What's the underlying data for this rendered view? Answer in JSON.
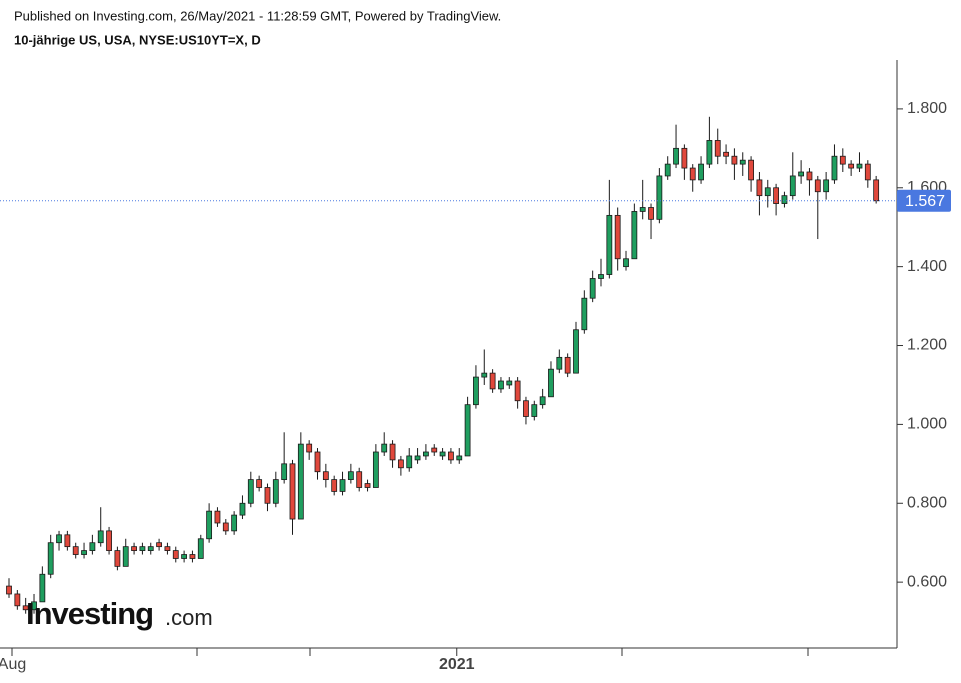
{
  "chart_data": {
    "type": "candlestick",
    "published": "Published on Investing.com, 26/May/2021 - 11:28:59 GMT, Powered by TradingView.",
    "title": "10-jährige US, USA, NYSE:US10YT=X, D",
    "logo": "Investing",
    "logo_suffix": ".com",
    "up_color": "#1f9e5f",
    "down_color": "#e0483c",
    "ylim": [
      0.433,
      1.924
    ],
    "yticks": [
      {
        "value": 0.6,
        "label": "0.600"
      },
      {
        "value": 0.8,
        "label": "0.800"
      },
      {
        "value": 1.0,
        "label": "1.000"
      },
      {
        "value": 1.2,
        "label": "1.200"
      },
      {
        "value": 1.4,
        "label": "1.400"
      },
      {
        "value": 1.6,
        "label": "1.600"
      },
      {
        "value": 1.8,
        "label": "1.800"
      }
    ],
    "xlim": [
      -1.08,
      106.5
    ],
    "xticks": [
      {
        "value": 0.36,
        "label": "Aug"
      },
      {
        "value": 53.7,
        "label": "2021"
      }
    ],
    "last_price": 1.567,
    "last_price_color": "#4a78e0",
    "candles": [
      [
        0.59,
        0.61,
        0.56,
        0.57
      ],
      [
        0.57,
        0.58,
        0.53,
        0.54
      ],
      [
        0.54,
        0.56,
        0.52,
        0.53
      ],
      [
        0.53,
        0.57,
        0.52,
        0.55
      ],
      [
        0.55,
        0.64,
        0.55,
        0.62
      ],
      [
        0.62,
        0.72,
        0.61,
        0.7
      ],
      [
        0.7,
        0.73,
        0.68,
        0.72
      ],
      [
        0.72,
        0.73,
        0.68,
        0.69
      ],
      [
        0.69,
        0.7,
        0.66,
        0.67
      ],
      [
        0.67,
        0.7,
        0.66,
        0.68
      ],
      [
        0.68,
        0.72,
        0.67,
        0.7
      ],
      [
        0.7,
        0.79,
        0.69,
        0.73
      ],
      [
        0.73,
        0.74,
        0.67,
        0.68
      ],
      [
        0.68,
        0.69,
        0.63,
        0.64
      ],
      [
        0.64,
        0.71,
        0.64,
        0.69
      ],
      [
        0.69,
        0.7,
        0.67,
        0.68
      ],
      [
        0.68,
        0.7,
        0.67,
        0.69
      ],
      [
        0.68,
        0.7,
        0.67,
        0.69
      ],
      [
        0.7,
        0.71,
        0.68,
        0.69
      ],
      [
        0.69,
        0.7,
        0.67,
        0.68
      ],
      [
        0.68,
        0.69,
        0.65,
        0.66
      ],
      [
        0.66,
        0.68,
        0.65,
        0.67
      ],
      [
        0.67,
        0.68,
        0.65,
        0.66
      ],
      [
        0.66,
        0.72,
        0.66,
        0.71
      ],
      [
        0.71,
        0.8,
        0.7,
        0.78
      ],
      [
        0.78,
        0.79,
        0.74,
        0.75
      ],
      [
        0.75,
        0.76,
        0.72,
        0.73
      ],
      [
        0.73,
        0.78,
        0.72,
        0.77
      ],
      [
        0.77,
        0.82,
        0.76,
        0.8
      ],
      [
        0.8,
        0.88,
        0.79,
        0.86
      ],
      [
        0.86,
        0.87,
        0.83,
        0.84
      ],
      [
        0.84,
        0.85,
        0.78,
        0.8
      ],
      [
        0.8,
        0.88,
        0.79,
        0.86
      ],
      [
        0.86,
        0.98,
        0.85,
        0.9
      ],
      [
        0.9,
        0.91,
        0.72,
        0.76
      ],
      [
        0.76,
        0.98,
        0.76,
        0.95
      ],
      [
        0.95,
        0.96,
        0.91,
        0.93
      ],
      [
        0.93,
        0.94,
        0.86,
        0.88
      ],
      [
        0.88,
        0.9,
        0.84,
        0.86
      ],
      [
        0.86,
        0.87,
        0.82,
        0.83
      ],
      [
        0.83,
        0.88,
        0.82,
        0.86
      ],
      [
        0.86,
        0.9,
        0.85,
        0.88
      ],
      [
        0.88,
        0.89,
        0.83,
        0.84
      ],
      [
        0.85,
        0.86,
        0.83,
        0.84
      ],
      [
        0.84,
        0.95,
        0.84,
        0.93
      ],
      [
        0.93,
        0.98,
        0.92,
        0.95
      ],
      [
        0.95,
        0.96,
        0.89,
        0.91
      ],
      [
        0.91,
        0.92,
        0.87,
        0.89
      ],
      [
        0.89,
        0.94,
        0.88,
        0.92
      ],
      [
        0.91,
        0.94,
        0.9,
        0.92
      ],
      [
        0.92,
        0.95,
        0.91,
        0.93
      ],
      [
        0.94,
        0.95,
        0.92,
        0.93
      ],
      [
        0.92,
        0.94,
        0.91,
        0.93
      ],
      [
        0.93,
        0.94,
        0.9,
        0.91
      ],
      [
        0.91,
        0.94,
        0.9,
        0.92
      ],
      [
        0.92,
        1.07,
        0.92,
        1.05
      ],
      [
        1.05,
        1.15,
        1.04,
        1.12
      ],
      [
        1.12,
        1.19,
        1.1,
        1.13
      ],
      [
        1.13,
        1.14,
        1.08,
        1.09
      ],
      [
        1.09,
        1.12,
        1.08,
        1.11
      ],
      [
        1.1,
        1.12,
        1.09,
        1.11
      ],
      [
        1.11,
        1.12,
        1.04,
        1.06
      ],
      [
        1.06,
        1.07,
        1.0,
        1.02
      ],
      [
        1.02,
        1.06,
        1.01,
        1.05
      ],
      [
        1.05,
        1.09,
        1.04,
        1.07
      ],
      [
        1.07,
        1.16,
        1.07,
        1.14
      ],
      [
        1.14,
        1.19,
        1.13,
        1.17
      ],
      [
        1.17,
        1.18,
        1.12,
        1.13
      ],
      [
        1.13,
        1.26,
        1.13,
        1.24
      ],
      [
        1.24,
        1.34,
        1.23,
        1.32
      ],
      [
        1.32,
        1.39,
        1.31,
        1.37
      ],
      [
        1.37,
        1.42,
        1.35,
        1.38
      ],
      [
        1.38,
        1.62,
        1.37,
        1.53
      ],
      [
        1.53,
        1.55,
        1.39,
        1.42
      ],
      [
        1.4,
        1.44,
        1.39,
        1.42
      ],
      [
        1.42,
        1.56,
        1.42,
        1.54
      ],
      [
        1.54,
        1.62,
        1.52,
        1.55
      ],
      [
        1.55,
        1.56,
        1.47,
        1.52
      ],
      [
        1.52,
        1.65,
        1.51,
        1.63
      ],
      [
        1.63,
        1.68,
        1.62,
        1.66
      ],
      [
        1.66,
        1.76,
        1.65,
        1.7
      ],
      [
        1.7,
        1.71,
        1.62,
        1.65
      ],
      [
        1.65,
        1.66,
        1.59,
        1.62
      ],
      [
        1.62,
        1.68,
        1.61,
        1.66
      ],
      [
        1.66,
        1.78,
        1.65,
        1.72
      ],
      [
        1.72,
        1.75,
        1.66,
        1.68
      ],
      [
        1.69,
        1.71,
        1.66,
        1.68
      ],
      [
        1.68,
        1.7,
        1.62,
        1.66
      ],
      [
        1.66,
        1.69,
        1.63,
        1.67
      ],
      [
        1.67,
        1.68,
        1.59,
        1.62
      ],
      [
        1.62,
        1.64,
        1.53,
        1.58
      ],
      [
        1.58,
        1.62,
        1.55,
        1.6
      ],
      [
        1.6,
        1.61,
        1.53,
        1.56
      ],
      [
        1.56,
        1.59,
        1.55,
        1.58
      ],
      [
        1.58,
        1.69,
        1.57,
        1.63
      ],
      [
        1.63,
        1.67,
        1.61,
        1.64
      ],
      [
        1.64,
        1.65,
        1.58,
        1.62
      ],
      [
        1.62,
        1.63,
        1.47,
        1.59
      ],
      [
        1.59,
        1.64,
        1.57,
        1.62
      ],
      [
        1.62,
        1.71,
        1.61,
        1.68
      ],
      [
        1.68,
        1.7,
        1.64,
        1.66
      ],
      [
        1.66,
        1.67,
        1.63,
        1.65
      ],
      [
        1.65,
        1.69,
        1.64,
        1.66
      ],
      [
        1.66,
        1.67,
        1.6,
        1.62
      ],
      [
        1.62,
        1.63,
        1.56,
        1.567
      ]
    ]
  }
}
